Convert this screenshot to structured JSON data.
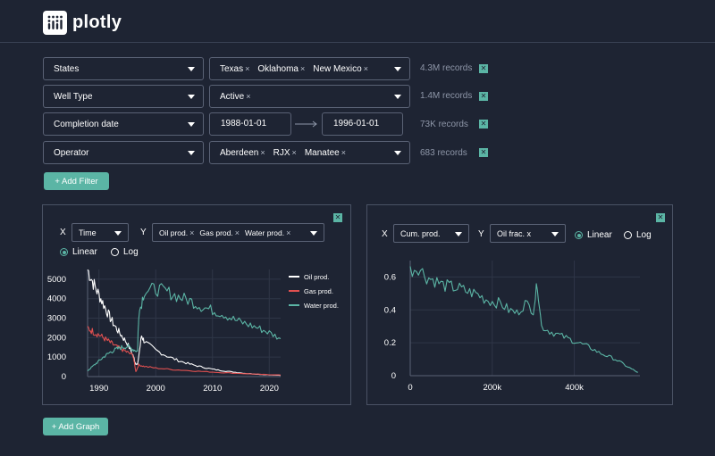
{
  "brand": {
    "name": "plotly"
  },
  "filters": [
    {
      "field": "States",
      "chips": [
        "Texas",
        "Oklahoma",
        "New Mexico"
      ],
      "count": "4.3M records"
    },
    {
      "field": "Well Type",
      "chips": [
        "Active"
      ],
      "count": "1.4M records"
    },
    {
      "field": "Completion date",
      "date_from": "1988-01-01",
      "date_to": "1996-01-01",
      "count": "73K records"
    },
    {
      "field": "Operator",
      "chips": [
        "Aberdeen",
        "RJX",
        "Manatee"
      ],
      "count": "683 records"
    }
  ],
  "chip_remove_glyph": "×",
  "checkbox_glyph": "✕",
  "add_filter_label": "+ Add Filter",
  "add_graph_label": "+ Add Graph",
  "graph1": {
    "x_label": "X",
    "y_label": "Y",
    "x_value": "Time",
    "y_chips": [
      "Oil prod.",
      "Gas prod.",
      "Water prod."
    ],
    "scale_options": [
      "Linear",
      "Log"
    ],
    "scale_selected": "Linear"
  },
  "graph2": {
    "x_label": "X",
    "y_label": "Y",
    "x_value": "Cum. prod.",
    "y_value": "Oil frac. x",
    "scale_options": [
      "Linear",
      "Log"
    ],
    "scale_selected": "Linear"
  },
  "colors": {
    "accent": "#5bb5a5",
    "oil": "#ffffff",
    "gas": "#e05050",
    "water": "#5bb5a5",
    "background": "#1e2433"
  },
  "chart_data": [
    {
      "type": "line",
      "x_range": [
        1988,
        2022
      ],
      "ylim": [
        0,
        5500
      ],
      "x_ticks": [
        "1990",
        "2000",
        "2010",
        "2020"
      ],
      "y_ticks": [
        "0",
        "1000",
        "2000",
        "3000",
        "4000",
        "5000"
      ],
      "legend_position": "top-right",
      "grid": true,
      "series": [
        {
          "name": "Oil prod.",
          "color": "#ffffff",
          "points": [
            [
              1988,
              5500
            ],
            [
              1989,
              4800
            ],
            [
              1990,
              4200
            ],
            [
              1991,
              3600
            ],
            [
              1992,
              3000
            ],
            [
              1993,
              2500
            ],
            [
              1994,
              2100
            ],
            [
              1995,
              1700
            ],
            [
              1996,
              1100
            ],
            [
              1996.4,
              700
            ],
            [
              1996.8,
              600
            ],
            [
              1997.5,
              2100
            ],
            [
              1998,
              1800
            ],
            [
              2000,
              1350
            ],
            [
              2002,
              1050
            ],
            [
              2004,
              820
            ],
            [
              2006,
              640
            ],
            [
              2008,
              500
            ],
            [
              2010,
              380
            ],
            [
              2012,
              290
            ],
            [
              2014,
              220
            ],
            [
              2016,
              160
            ],
            [
              2018,
              120
            ],
            [
              2020,
              90
            ],
            [
              2022,
              60
            ]
          ]
        },
        {
          "name": "Gas prod.",
          "color": "#e05050",
          "points": [
            [
              1988,
              2500
            ],
            [
              1989,
              2300
            ],
            [
              1990,
              2150
            ],
            [
              1991,
              1950
            ],
            [
              1992,
              1750
            ],
            [
              1993,
              1550
            ],
            [
              1994,
              1400
            ],
            [
              1995,
              1250
            ],
            [
              1996,
              1100
            ],
            [
              1996.5,
              250
            ],
            [
              1997,
              600
            ],
            [
              1998,
              520
            ],
            [
              2000,
              440
            ],
            [
              2003,
              360
            ],
            [
              2006,
              300
            ],
            [
              2009,
              250
            ],
            [
              2012,
              200
            ],
            [
              2015,
              160
            ],
            [
              2018,
              120
            ],
            [
              2020,
              100
            ],
            [
              2022,
              80
            ]
          ]
        },
        {
          "name": "Water prod.",
          "color": "#5bb5a5",
          "points": [
            [
              1988,
              300
            ],
            [
              1989,
              550
            ],
            [
              1990,
              800
            ],
            [
              1991,
              1050
            ],
            [
              1992,
              1250
            ],
            [
              1993,
              1400
            ],
            [
              1994,
              1500
            ],
            [
              1995,
              1550
            ],
            [
              1996,
              1400
            ],
            [
              1996.8,
              1300
            ],
            [
              1997,
              3200
            ],
            [
              1998,
              4400
            ],
            [
              2000,
              4500
            ],
            [
              2002,
              4350
            ],
            [
              2004,
              4100
            ],
            [
              2006,
              3900
            ],
            [
              2008,
              3600
            ],
            [
              2010,
              3400
            ],
            [
              2012,
              3200
            ],
            [
              2014,
              2900
            ],
            [
              2016,
              2700
            ],
            [
              2018,
              2500
            ],
            [
              2020,
              2250
            ],
            [
              2022,
              1950
            ]
          ]
        }
      ]
    },
    {
      "type": "line",
      "x_range": [
        0,
        560000
      ],
      "ylim": [
        0,
        0.7
      ],
      "x_ticks": [
        "0",
        "200k",
        "400k"
      ],
      "y_ticks": [
        "0",
        "0.2",
        "0.4",
        "0.6"
      ],
      "grid": true,
      "series": [
        {
          "color": "#5bb5a5",
          "points": [
            [
              0,
              0.64
            ],
            [
              20000,
              0.66
            ],
            [
              40000,
              0.6
            ],
            [
              60000,
              0.58
            ],
            [
              80000,
              0.55
            ],
            [
              100000,
              0.54
            ],
            [
              120000,
              0.53
            ],
            [
              140000,
              0.51
            ],
            [
              160000,
              0.5
            ],
            [
              180000,
              0.47
            ],
            [
              200000,
              0.45
            ],
            [
              220000,
              0.44
            ],
            [
              240000,
              0.4
            ],
            [
              260000,
              0.38
            ],
            [
              280000,
              0.44
            ],
            [
              300000,
              0.4
            ],
            [
              310000,
              0.56
            ],
            [
              320000,
              0.3
            ],
            [
              340000,
              0.27
            ],
            [
              360000,
              0.25
            ],
            [
              380000,
              0.23
            ],
            [
              400000,
              0.21
            ],
            [
              420000,
              0.19
            ],
            [
              440000,
              0.17
            ],
            [
              460000,
              0.14
            ],
            [
              480000,
              0.12
            ],
            [
              500000,
              0.1
            ],
            [
              520000,
              0.07
            ],
            [
              540000,
              0.04
            ],
            [
              555000,
              0.02
            ]
          ]
        }
      ]
    }
  ]
}
